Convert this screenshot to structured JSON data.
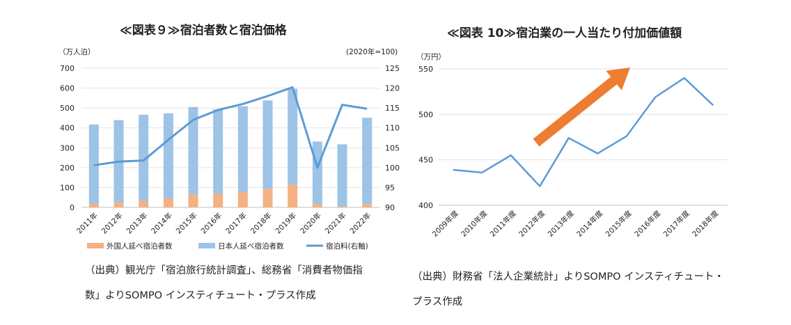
{
  "chart_data": [
    {
      "type": "bar",
      "title": "≪図表９≫宿泊者数と宿泊価格",
      "left_unit": "（万人泊）",
      "right_unit": "(2020年=100)",
      "categories": [
        "2011年",
        "2012年",
        "2013年",
        "2014年",
        "2015年",
        "2016年",
        "2017年",
        "2018年",
        "2019年",
        "2020年",
        "2021年",
        "2022年"
      ],
      "ylim": [
        0,
        700
      ],
      "yticks": [
        "0",
        "100",
        "200",
        "300",
        "400",
        "500",
        "600",
        "700"
      ],
      "y2lim": [
        90,
        125
      ],
      "y2ticks": [
        "90",
        "95",
        "100",
        "105",
        "110",
        "115",
        "120",
        "125"
      ],
      "series": [
        {
          "name": "外国人延べ宿泊者数",
          "color": "#f4b183",
          "values": [
            19,
            26,
            33,
            45,
            66,
            70,
            79,
            94,
            115,
            18,
            4,
            17
          ],
          "stacked": true
        },
        {
          "name": "日本人延べ宿泊者数",
          "color": "#9dc3e6",
          "values": [
            398,
            413,
            433,
            428,
            439,
            423,
            430,
            444,
            481,
            313,
            313,
            434
          ],
          "stacked": true
        },
        {
          "name": "宿泊料(右軸)",
          "color": "#5b9bd5",
          "values": [
            100.6,
            101.5,
            101.8,
            107.0,
            112.0,
            114.5,
            116.0,
            118.0,
            120.2,
            100.0,
            115.8,
            114.8
          ],
          "axis": "right",
          "type": "line"
        }
      ],
      "legend": "bottom",
      "grid": true,
      "source": [
        "（出典）観光庁「宿泊旅行統計調査」、総務省「消費者物価指",
        "数」よりSOMPO インスティチュート・プラス作成"
      ]
    },
    {
      "type": "line",
      "title": "≪図表 10≫宿泊業の一人当たり付加価値額",
      "left_unit": "（万円）",
      "categories": [
        "2009年度",
        "2010年度",
        "2011年度",
        "2012年度",
        "2013年度",
        "2014年度",
        "2015年度",
        "2016年度",
        "2017年度",
        "2018年度"
      ],
      "ylim": [
        400,
        550
      ],
      "yticks": [
        "400",
        "450",
        "500",
        "550"
      ],
      "series": [
        {
          "color": "#5b9bd5",
          "values": [
            439,
            436,
            455,
            421,
            474,
            457,
            476,
            519,
            540,
            510
          ]
        }
      ],
      "annotation": "orange-up-arrow",
      "arrow_color": "#ed7d31",
      "grid": true,
      "source": [
        "（出典）財務省「法人企業統計」よりSOMPO インスティチュート・",
        "プラス作成"
      ]
    }
  ]
}
